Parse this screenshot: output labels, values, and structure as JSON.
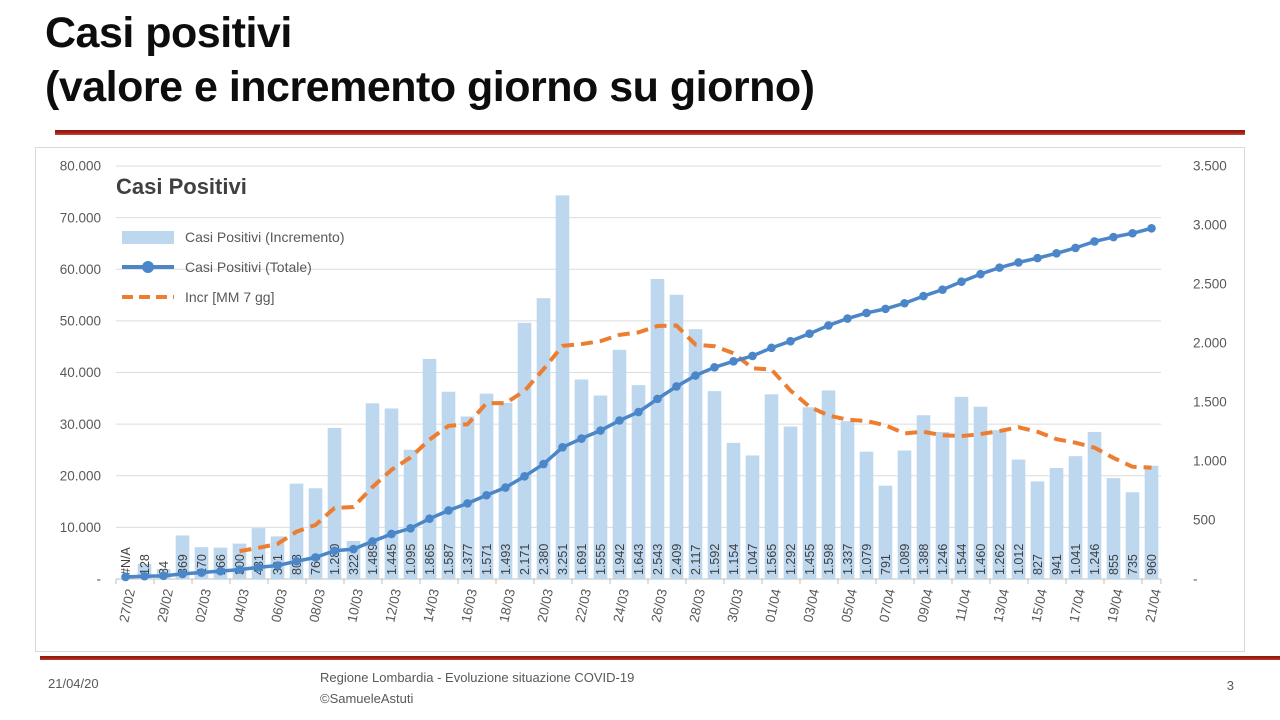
{
  "slide": {
    "title_line1": "Casi positivi",
    "title_line2": "(valore e incremento giorno su giorno)",
    "footer": {
      "date": "21/04/20",
      "credit_line1": "Regione Lombardia - Evoluzione situazione COVID-19",
      "credit_line2": "©SamueleAstuti",
      "page_number": "3"
    }
  },
  "chart_data": {
    "type": "combo-bar-line",
    "title": "Casi Positivi",
    "legend_position": "top-left-inside",
    "grid": "horizontal-only",
    "colors": {
      "bar_fill": "#bdd7ee",
      "totale_line": "#4a86c8",
      "ma_line": "#ed7d31",
      "gridline": "#dcdcdc",
      "axis_line": "#bfbfbf",
      "axis_text": "#595959",
      "bar_label_text": "#404040"
    },
    "left_axis": {
      "min": 0,
      "max": 80000,
      "ticks_top_to_bottom": [
        "80.000",
        "70.000",
        "60.000",
        "50.000",
        "40.000",
        "30.000",
        "20.000",
        "10.000",
        "-"
      ]
    },
    "right_axis": {
      "min": 0,
      "max": 3500,
      "ticks_top_to_bottom": [
        "3.500",
        "3.000",
        "2.500",
        "2.000",
        "1.500",
        "1.000",
        "500",
        "-"
      ]
    },
    "categories": [
      "27/02",
      "28/02",
      "29/02",
      "01/03",
      "02/03",
      "03/03",
      "04/03",
      "05/03",
      "06/03",
      "07/03",
      "08/03",
      "09/03",
      "10/03",
      "11/03",
      "12/03",
      "13/03",
      "14/03",
      "15/03",
      "16/03",
      "17/03",
      "18/03",
      "19/03",
      "20/03",
      "21/03",
      "22/03",
      "23/03",
      "24/03",
      "25/03",
      "26/03",
      "27/03",
      "28/03",
      "29/03",
      "30/03",
      "31/03",
      "01/04",
      "02/04",
      "03/04",
      "04/04",
      "05/04",
      "06/04",
      "07/04",
      "08/04",
      "09/04",
      "10/04",
      "11/04",
      "12/04",
      "13/04",
      "14/04",
      "15/04",
      "16/04",
      "17/04",
      "18/04",
      "19/04",
      "20/04",
      "21/04"
    ],
    "x_tick_labels": [
      "27/02",
      "29/02",
      "02/03",
      "04/03",
      "06/03",
      "08/03",
      "10/03",
      "12/03",
      "14/03",
      "16/03",
      "18/03",
      "20/03",
      "22/03",
      "24/03",
      "26/03",
      "28/03",
      "30/03",
      "01/04",
      "03/04",
      "05/04",
      "07/04",
      "09/04",
      "11/04",
      "13/04",
      "15/04",
      "17/04",
      "19/04",
      "21/04"
    ],
    "series": [
      {
        "name": "Casi Positivi (Incremento)",
        "type": "bar",
        "axis": "right",
        "color": "#bdd7ee",
        "values": [
          null,
          128,
          84,
          369,
          270,
          266,
          300,
          431,
          361,
          808,
          769,
          1280,
          322,
          1489,
          1445,
          1095,
          1865,
          1587,
          1377,
          1571,
          1493,
          2171,
          2380,
          3251,
          1691,
          1555,
          1942,
          1643,
          2543,
          2409,
          2117,
          1592,
          1154,
          1047,
          1565,
          1292,
          1455,
          1598,
          1337,
          1079,
          791,
          1089,
          1388,
          1246,
          1544,
          1460,
          1262,
          1012,
          827,
          941,
          1041,
          1246,
          855,
          735,
          960
        ],
        "labels": [
          "#N/A",
          "128",
          "84",
          "369",
          "270",
          "266",
          "300",
          "431",
          "361",
          "808",
          "769",
          "1.280",
          "322",
          "1.489",
          "1.445",
          "1.095",
          "1.865",
          "1.587",
          "1.377",
          "1.571",
          "1.493",
          "2.171",
          "2.380",
          "3.251",
          "1.691",
          "1.555",
          "1.942",
          "1.643",
          "2.543",
          "2.409",
          "2.117",
          "1.592",
          "1.154",
          "1.047",
          "1.565",
          "1.292",
          "1.455",
          "1.598",
          "1.337",
          "1.079",
          "791",
          "1.089",
          "1.388",
          "1.246",
          "1.544",
          "1.460",
          "1.262",
          "1.012",
          "827",
          "941",
          "1.041",
          "1.246",
          "855",
          "735",
          "960"
        ]
      },
      {
        "name": "Casi Positivi (Totale)",
        "type": "line-markers",
        "axis": "left",
        "color": "#4a86c8",
        "values": [
          403,
          531,
          615,
          984,
          1254,
          1520,
          1820,
          2251,
          2612,
          3420,
          4189,
          5469,
          5791,
          7280,
          8725,
          9820,
          11685,
          13272,
          14649,
          16220,
          17713,
          19884,
          22264,
          25515,
          27206,
          28761,
          30703,
          32346,
          34889,
          37298,
          39415,
          41007,
          42161,
          43208,
          44773,
          46065,
          47520,
          49118,
          50455,
          51534,
          52325,
          53414,
          54802,
          56048,
          57592,
          59052,
          60314,
          61326,
          62153,
          63094,
          64135,
          65381,
          66236,
          66971,
          67931
        ]
      },
      {
        "name": "Incr [MM 7 gg]",
        "type": "dashed-line",
        "axis": "right",
        "color": "#ed7d31",
        "values": [
          null,
          null,
          null,
          null,
          null,
          null,
          236,
          264,
          297,
          401,
          458,
          602,
          610,
          780,
          925,
          1030,
          1181,
          1298,
          1311,
          1490,
          1490,
          1594,
          1778,
          1976,
          1991,
          2016,
          2069,
          2090,
          2144,
          2148,
          1986,
          1972,
          1914,
          1786,
          1775,
          1597,
          1460,
          1386,
          1350,
          1339,
          1302,
          1234,
          1248,
          1218,
          1211,
          1228,
          1254,
          1286,
          1248,
          1185,
          1155,
          1113,
          1026,
          951,
          944
        ]
      }
    ]
  }
}
